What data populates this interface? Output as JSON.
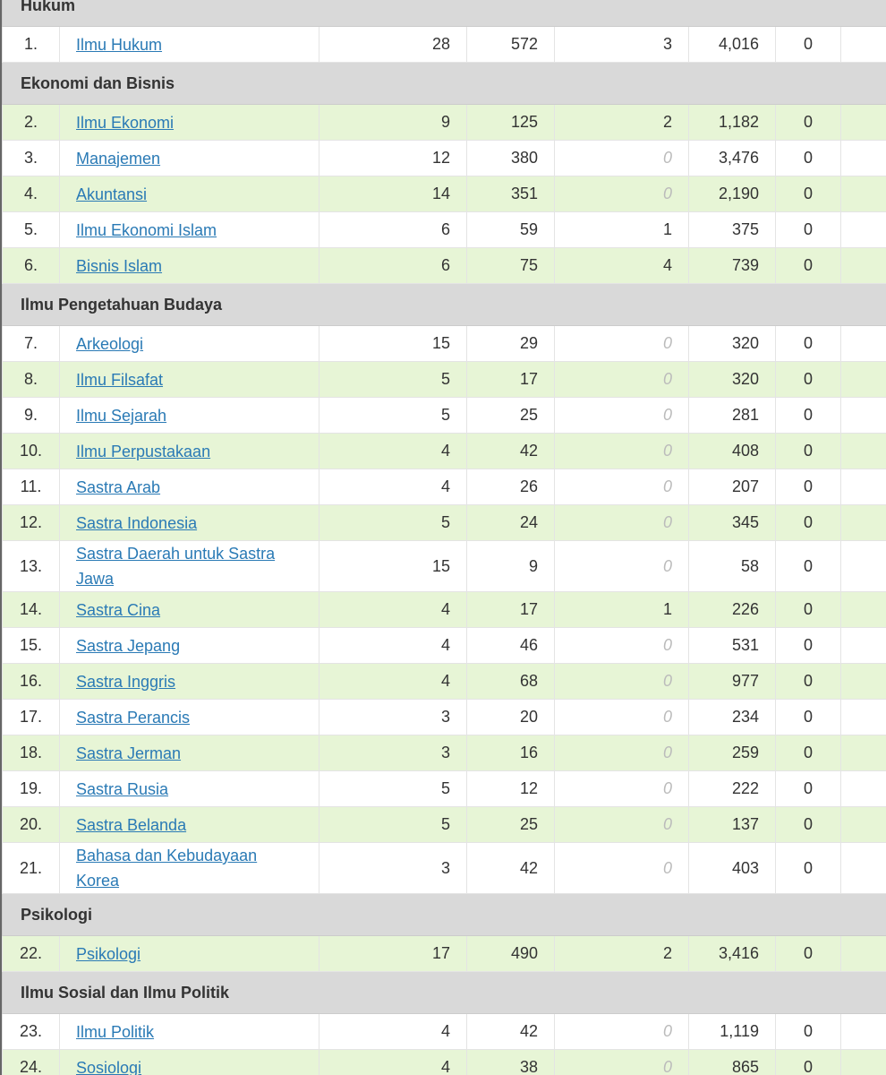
{
  "table": {
    "sections": [
      {
        "title": "Hukum",
        "rows": [
          [
            "1.",
            "Ilmu Hukum",
            "28",
            "572",
            "3",
            "4,016",
            "0"
          ]
        ]
      },
      {
        "title": "Ekonomi dan Bisnis",
        "rows": [
          [
            "2.",
            "Ilmu Ekonomi",
            "9",
            "125",
            "2",
            "1,182",
            "0"
          ],
          [
            "3.",
            "Manajemen",
            "12",
            "380",
            "0",
            "3,476",
            "0"
          ],
          [
            "4.",
            "Akuntansi",
            "14",
            "351",
            "0",
            "2,190",
            "0"
          ],
          [
            "5.",
            "Ilmu Ekonomi Islam",
            "6",
            "59",
            "1",
            "375",
            "0"
          ],
          [
            "6.",
            "Bisnis Islam",
            "6",
            "75",
            "4",
            "739",
            "0"
          ]
        ]
      },
      {
        "title": "Ilmu Pengetahuan Budaya",
        "rows": [
          [
            "7.",
            "Arkeologi",
            "15",
            "29",
            "0",
            "320",
            "0"
          ],
          [
            "8.",
            "Ilmu Filsafat",
            "5",
            "17",
            "0",
            "320",
            "0"
          ],
          [
            "9.",
            "Ilmu Sejarah",
            "5",
            "25",
            "0",
            "281",
            "0"
          ],
          [
            "10.",
            "Ilmu Perpustakaan",
            "4",
            "42",
            "0",
            "408",
            "0"
          ],
          [
            "11.",
            "Sastra Arab",
            "4",
            "26",
            "0",
            "207",
            "0"
          ],
          [
            "12.",
            "Sastra Indonesia",
            "5",
            "24",
            "0",
            "345",
            "0"
          ],
          [
            "13.",
            "Sastra Daerah untuk Sastra Jawa",
            "15",
            "9",
            "0",
            "58",
            "0"
          ],
          [
            "14.",
            "Sastra Cina",
            "4",
            "17",
            "1",
            "226",
            "0"
          ],
          [
            "15.",
            "Sastra Jepang",
            "4",
            "46",
            "0",
            "531",
            "0"
          ],
          [
            "16.",
            "Sastra Inggris",
            "4",
            "68",
            "0",
            "977",
            "0"
          ],
          [
            "17.",
            "Sastra Perancis",
            "3",
            "20",
            "0",
            "234",
            "0"
          ],
          [
            "18.",
            "Sastra Jerman",
            "3",
            "16",
            "0",
            "259",
            "0"
          ],
          [
            "19.",
            "Sastra Rusia",
            "5",
            "12",
            "0",
            "222",
            "0"
          ],
          [
            "20.",
            "Sastra Belanda",
            "5",
            "25",
            "0",
            "137",
            "0"
          ],
          [
            "21.",
            "Bahasa dan Kebudayaan Korea",
            "3",
            "42",
            "0",
            "403",
            "0"
          ]
        ]
      },
      {
        "title": "Psikologi",
        "rows": [
          [
            "22.",
            "Psikologi",
            "17",
            "490",
            "2",
            "3,416",
            "0"
          ]
        ]
      },
      {
        "title": "Ilmu Sosial dan Ilmu Politik",
        "rows": [
          [
            "23.",
            "Ilmu Politik",
            "4",
            "42",
            "0",
            "1,119",
            "0"
          ],
          [
            "24.",
            "Sosiologi",
            "4",
            "38",
            "0",
            "865",
            "0"
          ]
        ]
      }
    ]
  }
}
